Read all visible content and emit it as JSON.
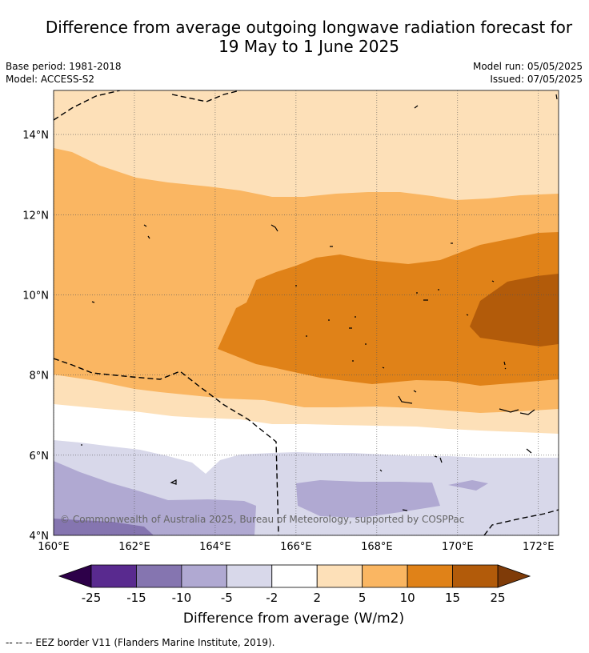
{
  "title_line1": "Difference from average outgoing longwave radiation forecast for",
  "title_line2": "19 May to 1 June 2025",
  "base_period": "Base period: 1981-2018",
  "model": "Model: ACCESS-S2",
  "model_run": "Model run: 05/05/2025",
  "issued": "Issued: 07/05/2025",
  "copyright": "© Commonwealth of Australia 2025, Bureau of Meteorology, supported by COSPPac",
  "footer": "-- -- -- EEZ border V11 (Flanders Marine Institute, 2019).",
  "colorbar_label": "Difference from average (W/m2)",
  "map": {
    "lon_labels": [
      "160°E",
      "162°E",
      "164°E",
      "166°E",
      "168°E",
      "170°E",
      "172°E"
    ],
    "lat_labels": [
      "14°N",
      "12°N",
      "10°N",
      "8°N",
      "6°N",
      "4°N"
    ],
    "lon_range": [
      160,
      172.5
    ],
    "lat_range": [
      4,
      15.1
    ],
    "grid": true
  },
  "colorbar": {
    "ticks": [
      "-25",
      "-15",
      "-10",
      "-5",
      "-2",
      "2",
      "5",
      "10",
      "15",
      "25"
    ],
    "colors": [
      "#592a8f",
      "#8575b0",
      "#b0a9d2",
      "#d8d8ea",
      "#ffffff",
      "#fde0b8",
      "#fab662",
      "#e08218",
      "#b25b0a"
    ],
    "under_color": "#2d0049",
    "over_color": "#7f3b08",
    "extend": "both"
  }
}
